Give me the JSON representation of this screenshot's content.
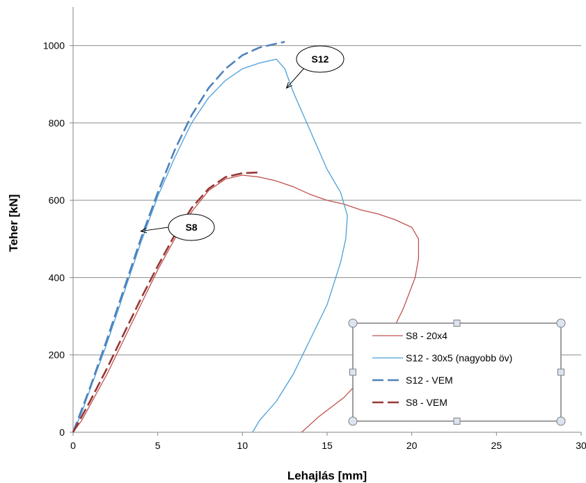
{
  "chart_data": {
    "type": "line",
    "xlabel": "Lehajlás [mm]",
    "ylabel": "Teher [kN]",
    "xlim": [
      0,
      30
    ],
    "ylim": [
      0,
      1100
    ],
    "xticks": [
      0,
      5,
      10,
      15,
      20,
      30
    ],
    "yticks": [
      0,
      200,
      400,
      600,
      800,
      1000
    ],
    "grid": "horizontal",
    "legend_position": "bottom-right",
    "series": [
      {
        "name": "S8 - 20x4",
        "color": "#c0504d",
        "style": "solid",
        "points": [
          [
            0,
            0
          ],
          [
            0.5,
            30
          ],
          [
            1,
            70
          ],
          [
            2,
            150
          ],
          [
            3,
            240
          ],
          [
            4,
            330
          ],
          [
            5,
            420
          ],
          [
            6,
            500
          ],
          [
            7,
            570
          ],
          [
            8,
            625
          ],
          [
            9,
            655
          ],
          [
            10,
            665
          ],
          [
            11,
            660
          ],
          [
            12,
            650
          ],
          [
            13,
            635
          ],
          [
            14,
            615
          ],
          [
            15,
            600
          ],
          [
            16,
            590
          ],
          [
            17,
            575
          ],
          [
            18,
            565
          ],
          [
            19,
            550
          ],
          [
            20,
            530
          ],
          [
            20.4,
            500
          ],
          [
            20.4,
            450
          ],
          [
            20.2,
            400
          ],
          [
            19.5,
            320
          ],
          [
            18.5,
            230
          ],
          [
            17.5,
            160
          ],
          [
            16,
            90
          ],
          [
            14.5,
            40
          ],
          [
            13.5,
            0
          ]
        ]
      },
      {
        "name": "S12 - 30x5 (nagyobb öv)",
        "color": "#4a9fd8",
        "style": "solid",
        "points": [
          [
            0,
            0
          ],
          [
            0.5,
            50
          ],
          [
            1,
            110
          ],
          [
            2,
            230
          ],
          [
            3,
            360
          ],
          [
            4,
            490
          ],
          [
            5,
            610
          ],
          [
            6,
            710
          ],
          [
            7,
            800
          ],
          [
            8,
            865
          ],
          [
            9,
            910
          ],
          [
            10,
            940
          ],
          [
            11,
            955
          ],
          [
            12,
            965
          ],
          [
            12.5,
            940
          ],
          [
            13,
            880
          ],
          [
            14,
            780
          ],
          [
            15,
            680
          ],
          [
            15.8,
            620
          ],
          [
            16.2,
            560
          ],
          [
            16.1,
            500
          ],
          [
            15.8,
            440
          ],
          [
            15,
            330
          ],
          [
            14,
            240
          ],
          [
            13,
            150
          ],
          [
            12,
            80
          ],
          [
            11,
            30
          ],
          [
            10.6,
            0
          ]
        ]
      },
      {
        "name": "S12 - VEM",
        "color": "#4f81bd",
        "style": "dashed",
        "points": [
          [
            0,
            0
          ],
          [
            1,
            115
          ],
          [
            2,
            240
          ],
          [
            3,
            370
          ],
          [
            4,
            500
          ],
          [
            5,
            620
          ],
          [
            6,
            730
          ],
          [
            7,
            820
          ],
          [
            8,
            890
          ],
          [
            9,
            940
          ],
          [
            10,
            975
          ],
          [
            11,
            995
          ],
          [
            12,
            1005
          ],
          [
            12.5,
            1010
          ]
        ]
      },
      {
        "name": "S8 - VEM",
        "color": "#953735",
        "style": "dashed",
        "points": [
          [
            0,
            0
          ],
          [
            1,
            80
          ],
          [
            2,
            165
          ],
          [
            3,
            255
          ],
          [
            4,
            345
          ],
          [
            5,
            430
          ],
          [
            6,
            510
          ],
          [
            7,
            580
          ],
          [
            8,
            630
          ],
          [
            9,
            660
          ],
          [
            10,
            670
          ],
          [
            11,
            672
          ]
        ]
      }
    ],
    "annotations": [
      {
        "label": "S12",
        "target": [
          12.6,
          890
        ]
      },
      {
        "label": "S8",
        "target": [
          4.0,
          520
        ]
      }
    ]
  }
}
